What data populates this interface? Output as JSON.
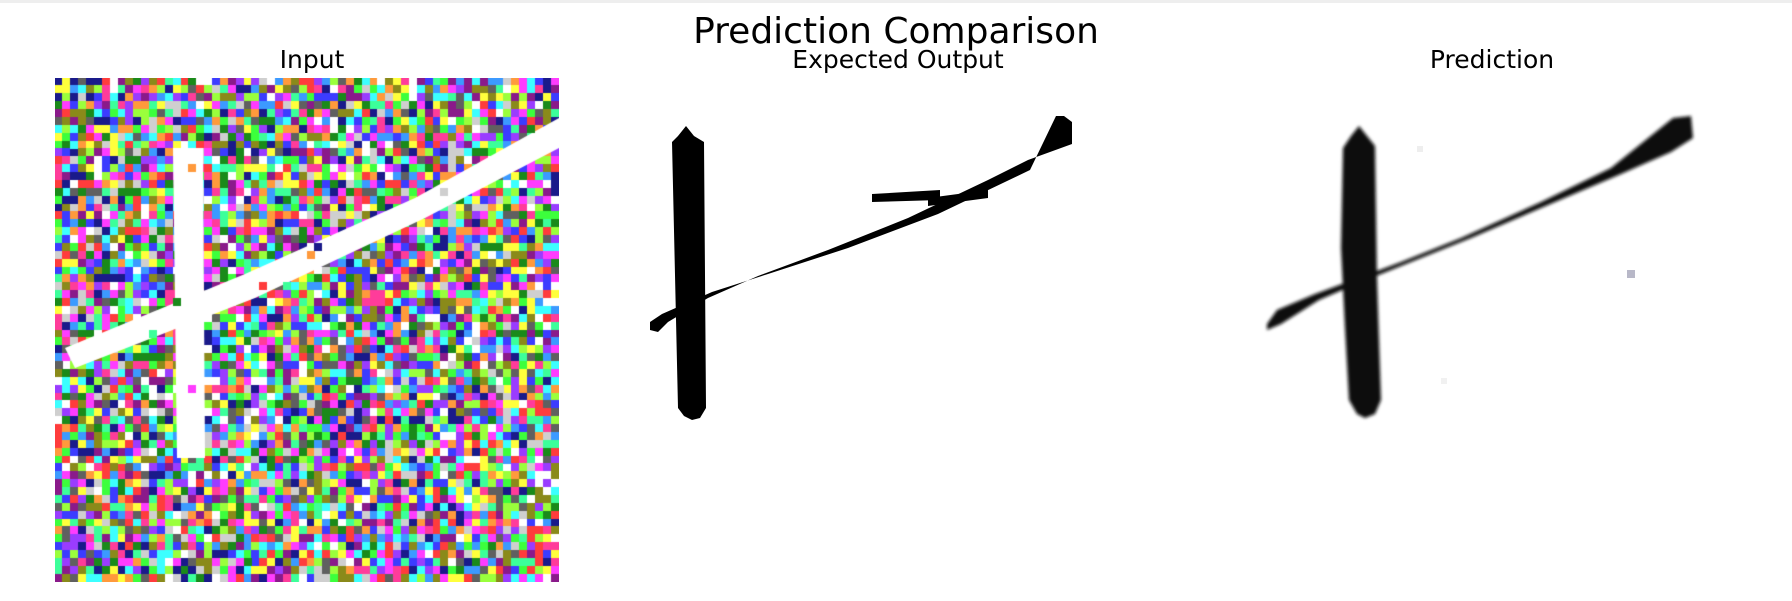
{
  "title": "Prediction Comparison",
  "panels": [
    {
      "title": "Input"
    },
    {
      "title": "Expected Output"
    },
    {
      "title": "Prediction"
    }
  ],
  "colors": {
    "background": "#ffffff",
    "stroke": "#000000",
    "noise_palette": [
      "#ff3cff",
      "#3cff3c",
      "#3c3cff",
      "#ff3c3c",
      "#3cffff",
      "#ffff3c",
      "#9a3cff",
      "#3c9aff",
      "#ff9a3c",
      "#9aff3c",
      "#ff3c9a",
      "#3cff9a",
      "#1a1a8a",
      "#8a1a8a",
      "#1a8a1a",
      "#8a8a1a",
      "#ffffff",
      "#cfcfcf",
      "#606060"
    ]
  }
}
